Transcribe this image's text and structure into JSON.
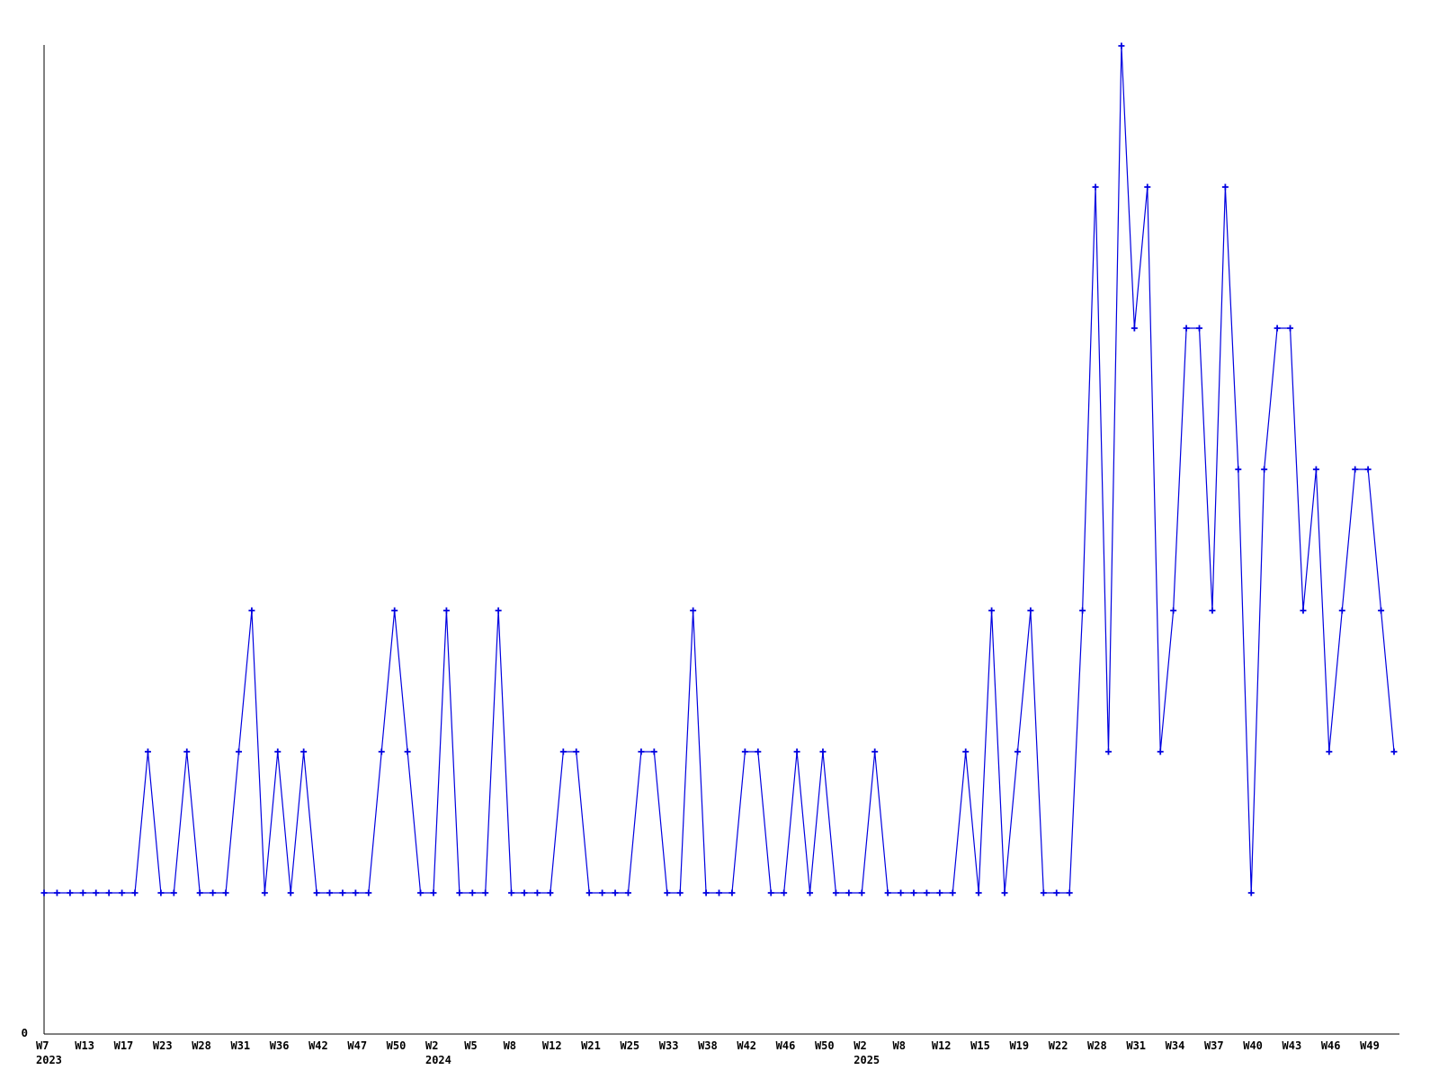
{
  "chart_data": {
    "type": "line",
    "title": "",
    "x_axis": {
      "tick_labels": [
        "W7",
        "W13",
        "W17",
        "W23",
        "W28",
        "W31",
        "W36",
        "W42",
        "W47",
        "W50",
        "W2",
        "W5",
        "W8",
        "W12",
        "W21",
        "W25",
        "W33",
        "W38",
        "W42",
        "W46",
        "W50",
        "W2",
        "W8",
        "W12",
        "W15",
        "W19",
        "W22",
        "W28",
        "W31",
        "W34",
        "W37",
        "W40",
        "W43",
        "W46",
        "W49"
      ],
      "tick_every_n_points": 3,
      "year_rows": [
        {
          "tick_index": 0,
          "year": "2023"
        },
        {
          "tick_index": 10,
          "year": "2024"
        },
        {
          "tick_index": 21,
          "year": "2025"
        }
      ]
    },
    "y_axis": {
      "tick_labels": [
        "0"
      ],
      "min": 0,
      "max": 7
    },
    "series": [
      {
        "name": "weekly-count",
        "color": "#0000e0",
        "marker": "plus",
        "values": [
          1,
          1,
          1,
          1,
          1,
          1,
          1,
          1,
          2,
          1,
          1,
          2,
          1,
          1,
          1,
          2,
          3,
          1,
          2,
          1,
          2,
          1,
          1,
          1,
          1,
          1,
          2,
          3,
          2,
          1,
          1,
          3,
          1,
          1,
          1,
          3,
          1,
          1,
          1,
          1,
          2,
          2,
          1,
          1,
          1,
          1,
          2,
          2,
          1,
          1,
          3,
          1,
          1,
          1,
          2,
          2,
          1,
          1,
          2,
          1,
          2,
          1,
          1,
          1,
          2,
          1,
          1,
          1,
          1,
          1,
          1,
          2,
          1,
          3,
          1,
          2,
          3,
          1,
          1,
          1,
          3,
          6,
          2,
          7,
          5,
          6,
          2,
          3,
          5,
          5,
          3,
          6,
          4,
          1,
          4,
          5,
          5,
          3,
          4,
          2,
          3,
          4,
          4,
          3,
          2
        ]
      }
    ],
    "grid": false,
    "legend": false
  },
  "colors": {
    "background": "#ffffff",
    "axis": "#000000",
    "text": "#000000",
    "line": "#0000e0"
  }
}
